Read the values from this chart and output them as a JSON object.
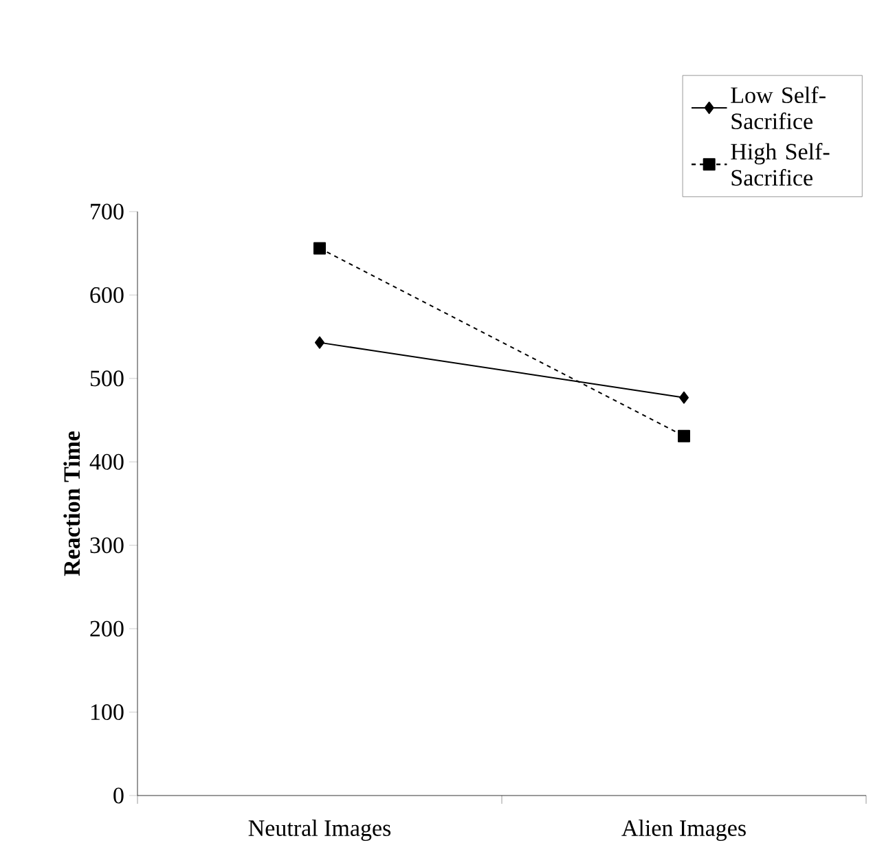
{
  "chart_data": {
    "type": "line",
    "ylabel": "Reaction Time",
    "categories": [
      "Neutral Images",
      "Alien Images"
    ],
    "series": [
      {
        "name": "Low Self-Sacrifice",
        "color": "#000000",
        "values": [
          543,
          477
        ],
        "marker": "diamond",
        "line_style": "solid"
      },
      {
        "name": "High Self-Sacrifice",
        "color": "#000000",
        "values": [
          656,
          431
        ],
        "marker": "square",
        "line_style": "dashed"
      }
    ],
    "ylim": [
      0,
      700
    ],
    "yticks": [
      0,
      100,
      200,
      300,
      400,
      500,
      600,
      700
    ],
    "grid": false,
    "legend": "top right"
  }
}
